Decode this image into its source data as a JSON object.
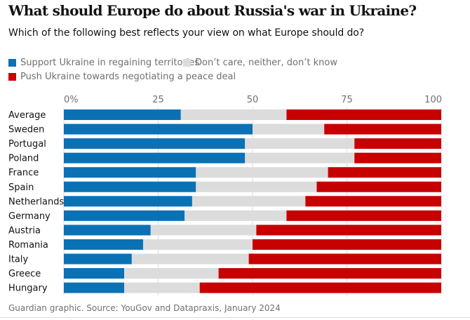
{
  "title": "What should Europe do about Russia's war in Ukraine?",
  "subtitle": "Which of the following best reflects your view on what Europe should do?",
  "legend": [
    {
      "label": "Support Ukraine in regaining territories",
      "color": "#0a71b5"
    },
    {
      "label": "Don’t care, neither, don’t know",
      "color": "#dcdcdc"
    },
    {
      "label": "Push Ukraine towards negotiating a peace deal",
      "color": "#c70000"
    }
  ],
  "source": "Guardian graphic. Source: YouGov and Datapraxis, January 2024",
  "chart_data": {
    "type": "bar",
    "orientation": "horizontal",
    "stacked": true,
    "title": "What should Europe do about Russia's war in Ukraine?",
    "subtitle": "Which of the following best reflects your view on what Europe should do?",
    "x_ticks": [
      "0%",
      "25",
      "50",
      "75",
      "100"
    ],
    "xlim": [
      0,
      100
    ],
    "categories": [
      "Average",
      "Sweden",
      "Portugal",
      "Poland",
      "France",
      "Spain",
      "Netherlands",
      "Germany",
      "Austria",
      "Romania",
      "Italy",
      "Greece",
      "Hungary"
    ],
    "series": [
      {
        "name": "Support Ukraine in regaining territories",
        "color": "#0a71b5",
        "values": [
          31,
          50,
          48,
          48,
          35,
          35,
          34,
          32,
          23,
          21,
          18,
          16,
          16
        ]
      },
      {
        "name": "Don’t care, neither, don’t know",
        "color": "#dcdcdc",
        "values": [
          28,
          19,
          29,
          29,
          35,
          32,
          30,
          27,
          28,
          29,
          31,
          25,
          20
        ]
      },
      {
        "name": "Push Ukraine towards negotiating a peace deal",
        "color": "#c70000",
        "values": [
          41,
          31,
          23,
          23,
          30,
          33,
          36,
          41,
          49,
          50,
          51,
          59,
          64
        ]
      }
    ]
  }
}
